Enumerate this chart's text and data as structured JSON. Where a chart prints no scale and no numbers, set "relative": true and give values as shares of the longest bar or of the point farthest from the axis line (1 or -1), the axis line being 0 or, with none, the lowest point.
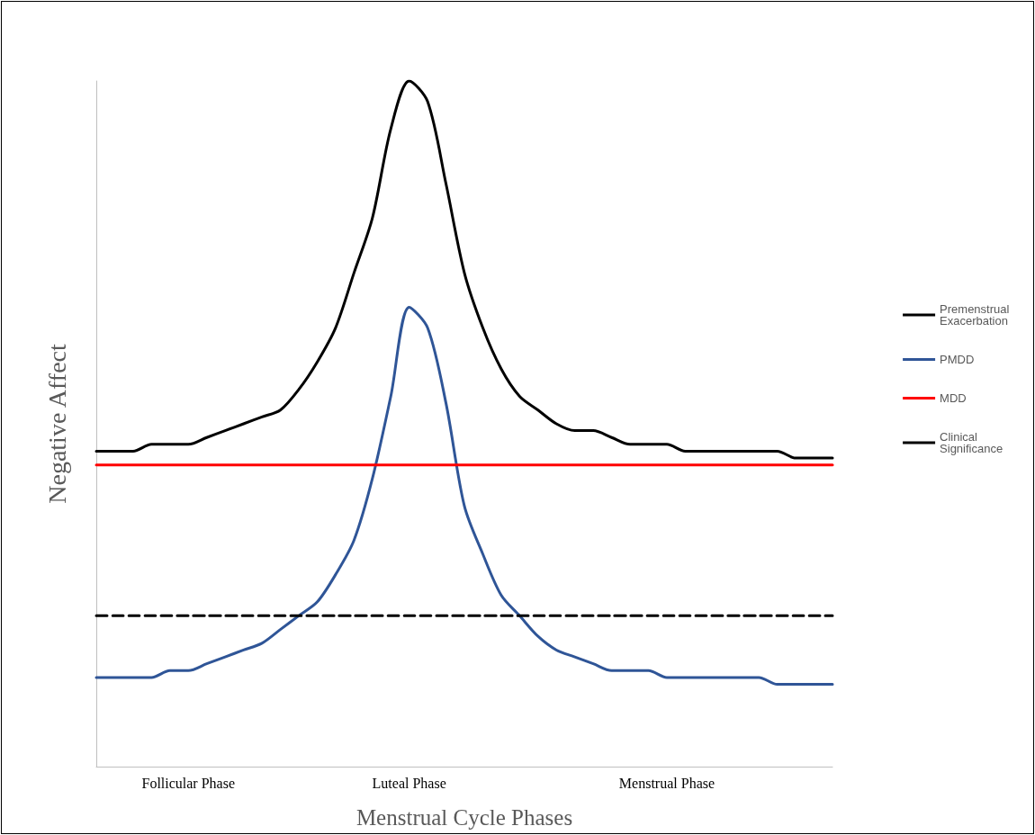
{
  "chart_data": {
    "type": "line",
    "relative": true,
    "xlabel": "Menstrual Cycle Phases",
    "ylabel": "Negative Affect",
    "categories": [
      null,
      null,
      null,
      null,
      null,
      "Follicular Phase",
      null,
      null,
      null,
      null,
      null,
      null,
      null,
      null,
      null,
      null,
      null,
      "Luteal Phase",
      null,
      null,
      null,
      null,
      null,
      null,
      null,
      null,
      null,
      null,
      null,
      null,
      null,
      "Menstrual Phase",
      null,
      null,
      null,
      null,
      null,
      null,
      null,
      null,
      null
    ],
    "series": [
      {
        "name": "Premenstrual Exacerbation",
        "color": "#000000",
        "values": [
          0.46,
          0.46,
          0.46,
          0.47,
          0.47,
          0.47,
          0.48,
          0.49,
          0.5,
          0.51,
          0.52,
          0.55,
          0.59,
          0.64,
          0.72,
          0.8,
          0.93,
          1.0,
          0.97,
          0.85,
          0.72,
          0.64,
          0.58,
          0.54,
          0.52,
          0.5,
          0.49,
          0.49,
          0.48,
          0.47,
          0.47,
          0.47,
          0.46,
          0.46,
          0.46,
          0.46,
          0.46,
          0.46,
          0.45,
          0.45,
          0.45
        ]
      },
      {
        "name": "PMDD",
        "color": "#2f5597",
        "values": [
          0.13,
          0.13,
          0.13,
          0.13,
          0.14,
          0.14,
          0.15,
          0.16,
          0.17,
          0.18,
          0.2,
          0.22,
          0.24,
          0.28,
          0.33,
          0.42,
          0.54,
          0.67,
          0.64,
          0.53,
          0.38,
          0.31,
          0.25,
          0.22,
          0.19,
          0.17,
          0.16,
          0.15,
          0.14,
          0.14,
          0.14,
          0.13,
          0.13,
          0.13,
          0.13,
          0.13,
          0.13,
          0.12,
          0.12,
          0.12,
          0.12
        ]
      },
      {
        "name": "MDD",
        "color": "#ff0000",
        "values": [
          0.44,
          0.44,
          0.44,
          0.44,
          0.44,
          0.44,
          0.44,
          0.44,
          0.44,
          0.44,
          0.44,
          0.44,
          0.44,
          0.44,
          0.44,
          0.44,
          0.44,
          0.44,
          0.44,
          0.44,
          0.44,
          0.44,
          0.44,
          0.44,
          0.44,
          0.44,
          0.44,
          0.44,
          0.44,
          0.44,
          0.44,
          0.44,
          0.44,
          0.44,
          0.44,
          0.44,
          0.44,
          0.44,
          0.44,
          0.44,
          0.44
        ]
      },
      {
        "name": "Clinical Significance",
        "color": "#000000",
        "line_style": "dashed",
        "values": [
          0.22,
          0.22,
          0.22,
          0.22,
          0.22,
          0.22,
          0.22,
          0.22,
          0.22,
          0.22,
          0.22,
          0.22,
          0.22,
          0.22,
          0.22,
          0.22,
          0.22,
          0.22,
          0.22,
          0.22,
          0.22,
          0.22,
          0.22,
          0.22,
          0.22,
          0.22,
          0.22,
          0.22,
          0.22,
          0.22,
          0.22,
          0.22,
          0.22,
          0.22,
          0.22,
          0.22,
          0.22,
          0.22,
          0.22,
          0.22,
          0.22
        ]
      }
    ],
    "legend": "right",
    "marker": "none"
  }
}
